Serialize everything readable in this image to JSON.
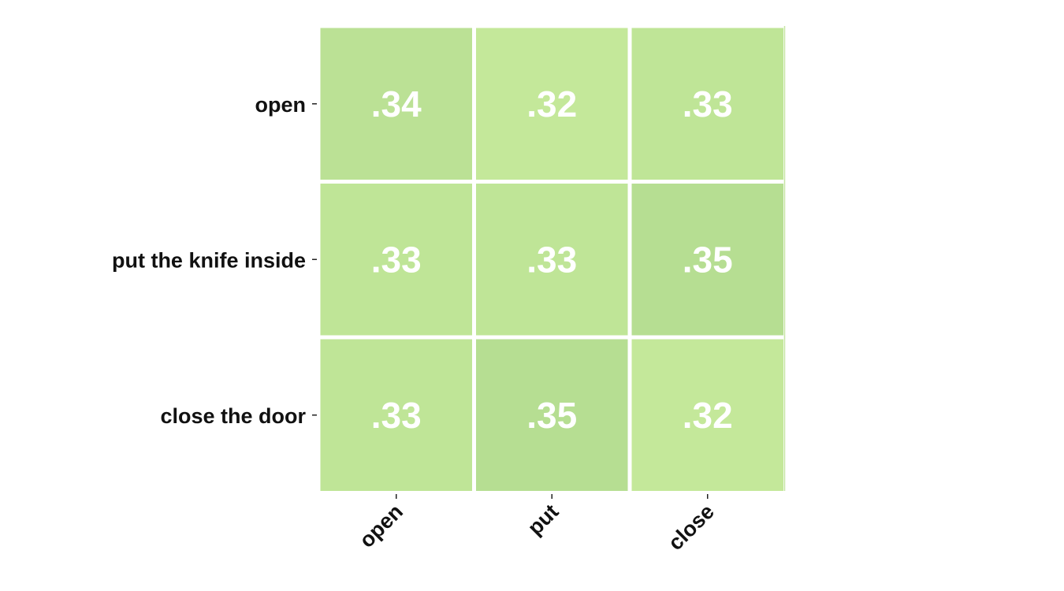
{
  "chart_data": {
    "type": "heatmap",
    "title": "",
    "xlabel": "",
    "ylabel": "",
    "x_categories": [
      "open",
      "put",
      "close"
    ],
    "y_categories": [
      "open",
      "put the knife inside",
      "close the door"
    ],
    "values": [
      [
        0.34,
        0.32,
        0.33
      ],
      [
        0.33,
        0.33,
        0.35
      ],
      [
        0.33,
        0.35,
        0.32
      ]
    ],
    "value_labels": [
      [
        ".34",
        ".32",
        ".33"
      ],
      [
        ".33",
        ".33",
        ".35"
      ],
      [
        ".33",
        ".35",
        ".32"
      ]
    ],
    "colorscale": {
      "low": "#c4e89a",
      "high": "#b6de92"
    },
    "colorbar": false,
    "grid": false
  }
}
